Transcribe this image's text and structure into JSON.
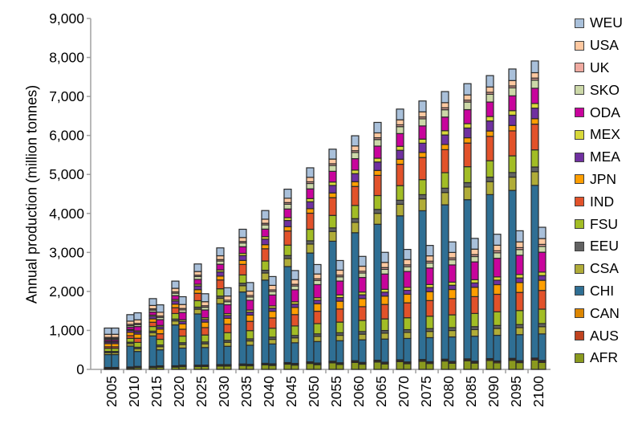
{
  "chart_data": {
    "type": "bar",
    "stacked": true,
    "bars_per_category": 2,
    "title": "",
    "xlabel": "",
    "ylabel": "Annual production (million tonnes)",
    "ylim": [
      0,
      9000
    ],
    "yticks": [
      "0",
      "1,000",
      "2,000",
      "3,000",
      "4,000",
      "5,000",
      "6,000",
      "7,000",
      "8,000",
      "9,000"
    ],
    "ytick_values": [
      0,
      1000,
      2000,
      3000,
      4000,
      5000,
      6000,
      7000,
      8000,
      9000
    ],
    "grid": false,
    "legend_position": "right",
    "categories": [
      "2005",
      "2010",
      "2015",
      "2020",
      "2025",
      "2030",
      "2035",
      "2040",
      "2045",
      "2050",
      "2055",
      "2060",
      "2065",
      "2070",
      "2075",
      "2080",
      "2085",
      "2090",
      "2095",
      "2100"
    ],
    "series": [
      {
        "name": "AFR",
        "color": "#8a9a1e",
        "values_a": [
          20,
          31,
          44,
          59,
          73,
          86,
          101,
          117,
          134,
          152,
          167,
          178,
          189,
          200,
          207,
          215,
          221,
          228,
          233,
          240
        ],
        "values_b": [
          20,
          44,
          57,
          70,
          74,
          84,
          92,
          102,
          111,
          121,
          127,
          134,
          140,
          145,
          151,
          157,
          162,
          169,
          174,
          180
        ]
      },
      {
        "name": "AUS",
        "color": "#c0431f",
        "values_a": [
          15,
          16,
          17,
          18,
          19,
          20,
          21,
          22,
          23,
          24,
          25,
          26,
          27,
          27,
          28,
          28,
          29,
          29,
          30,
          30
        ],
        "values_b": [
          15,
          17,
          18,
          20,
          20,
          21,
          22,
          23,
          24,
          24,
          25,
          26,
          26,
          27,
          27,
          28,
          28,
          29,
          29,
          30
        ]
      },
      {
        "name": "CAN",
        "color": "#dd8600",
        "values_a": [
          15,
          15,
          16,
          16,
          16,
          17,
          17,
          17,
          18,
          18,
          18,
          19,
          19,
          19,
          19,
          19,
          20,
          20,
          20,
          20
        ],
        "values_b": [
          15,
          16,
          16,
          17,
          17,
          17,
          17,
          18,
          18,
          18,
          18,
          19,
          19,
          19,
          19,
          19,
          19,
          20,
          20,
          20
        ]
      },
      {
        "name": "CHI",
        "color": "#2f6f94",
        "values_a": [
          330,
          535,
          781,
          1048,
          1314,
          1560,
          1847,
          2134,
          2462,
          2790,
          3077,
          3282,
          3487,
          3692,
          3815,
          3959,
          4082,
          4205,
          4307,
          4430
        ],
        "values_b": [
          330,
          383,
          411,
          439,
          449,
          470,
          488,
          509,
          530,
          551,
          565,
          579,
          593,
          603,
          617,
          629,
          642,
          656,
          668,
          680
        ]
      },
      {
        "name": "CSA",
        "color": "#b0ac38",
        "values_a": [
          50,
          65,
          83,
          103,
          122,
          140,
          161,
          182,
          206,
          230,
          251,
          266,
          281,
          296,
          305,
          316,
          325,
          334,
          341,
          350
        ],
        "values_b": [
          50,
          70,
          81,
          92,
          96,
          104,
          111,
          119,
          127,
          135,
          140,
          146,
          151,
          155,
          161,
          165,
          170,
          176,
          180,
          185
        ]
      },
      {
        "name": "EEU",
        "color": "#626262",
        "values_a": [
          30,
          35,
          40,
          46,
          52,
          57,
          63,
          70,
          77,
          84,
          90,
          95,
          99,
          104,
          107,
          110,
          112,
          115,
          117,
          120
        ],
        "values_b": [
          30,
          38,
          42,
          46,
          47,
          50,
          53,
          56,
          59,
          62,
          64,
          66,
          68,
          69,
          71,
          73,
          75,
          77,
          78,
          80
        ]
      },
      {
        "name": "FSU",
        "color": "#a2bd25",
        "values_a": [
          80,
          98,
          120,
          143,
          166,
          188,
          213,
          238,
          267,
          296,
          321,
          339,
          357,
          375,
          386,
          399,
          409,
          420,
          429,
          440
        ],
        "values_b": [
          80,
          124,
          147,
          170,
          179,
          196,
          211,
          228,
          245,
          263,
          274,
          286,
          298,
          306,
          318,
          328,
          338,
          350,
          360,
          370
        ]
      },
      {
        "name": "IND",
        "color": "#e2522a",
        "values_a": [
          40,
          71,
          108,
          149,
          189,
          226,
          269,
          313,
          362,
          412,
          455,
          486,
          517,
          548,
          567,
          589,
          607,
          626,
          641,
          660
        ],
        "values_b": [
          40,
          106,
          141,
          176,
          190,
          216,
          238,
          264,
          291,
          317,
          335,
          352,
          370,
          383,
          401,
          416,
          432,
          449,
          465,
          480
        ]
      },
      {
        "name": "JPN",
        "color": "#ff9e00",
        "values_a": [
          80,
          83,
          87,
          91,
          94,
          98,
          102,
          106,
          111,
          116,
          120,
          123,
          126,
          129,
          131,
          133,
          135,
          137,
          138,
          140
        ],
        "values_b": [
          80,
          107,
          121,
          136,
          141,
          152,
          161,
          172,
          183,
          193,
          201,
          208,
          215,
          220,
          228,
          234,
          240,
          247,
          254,
          260
        ]
      },
      {
        "name": "MEA",
        "color": "#7030a0",
        "values_a": [
          40,
          52,
          65,
          80,
          95,
          109,
          125,
          141,
          160,
          178,
          194,
          206,
          217,
          229,
          236,
          244,
          250,
          257,
          263,
          270
        ],
        "values_b": [
          40,
          52,
          58,
          65,
          67,
          72,
          76,
          81,
          86,
          90,
          94,
          97,
          100,
          102,
          106,
          108,
          111,
          114,
          117,
          120
        ]
      },
      {
        "name": "MEX",
        "color": "#d8d83a",
        "values_a": [
          20,
          25,
          31,
          38,
          44,
          50,
          57,
          64,
          72,
          80,
          87,
          92,
          97,
          102,
          105,
          109,
          112,
          115,
          117,
          120
        ],
        "values_b": [
          20,
          31,
          36,
          42,
          44,
          48,
          52,
          56,
          60,
          64,
          67,
          70,
          73,
          75,
          77,
          80,
          82,
          85,
          88,
          90
        ]
      },
      {
        "name": "ODA",
        "color": "#c8049c",
        "values_a": [
          40,
          58,
          79,
          101,
          124,
          145,
          170,
          194,
          222,
          250,
          275,
          292,
          310,
          327,
          338,
          350,
          360,
          371,
          380,
          390
        ],
        "values_b": [
          40,
          111,
          148,
          186,
          200,
          228,
          252,
          280,
          308,
          336,
          355,
          374,
          393,
          407,
          425,
          442,
          458,
          477,
          494,
          510
        ]
      },
      {
        "name": "SKO",
        "color": "#ccd8a8",
        "values_a": [
          30,
          39,
          50,
          62,
          73,
          84,
          97,
          109,
          124,
          138,
          151,
          160,
          169,
          178,
          183,
          189,
          195,
          200,
          205,
          210
        ],
        "values_b": [
          30,
          48,
          58,
          67,
          71,
          78,
          84,
          91,
          98,
          106,
          110,
          115,
          120,
          124,
          128,
          133,
          137,
          142,
          146,
          150
        ]
      },
      {
        "name": "UK",
        "color": "#f0aaa0",
        "values_a": [
          30,
          31,
          32,
          34,
          35,
          36,
          37,
          39,
          40,
          42,
          43,
          44,
          45,
          46,
          47,
          48,
          48,
          49,
          49,
          50
        ],
        "values_b": [
          30,
          33,
          35,
          36,
          37,
          38,
          39,
          40,
          41,
          43,
          43,
          44,
          45,
          46,
          46,
          47,
          48,
          49,
          49,
          50
        ]
      },
      {
        "name": "USA",
        "color": "#ffc8a0",
        "values_a": [
          80,
          83,
          87,
          91,
          94,
          98,
          102,
          106,
          111,
          116,
          120,
          123,
          126,
          129,
          131,
          133,
          135,
          137,
          138,
          140
        ],
        "values_b": [
          80,
          91,
          96,
          102,
          104,
          108,
          112,
          116,
          120,
          124,
          127,
          130,
          133,
          135,
          137,
          140,
          142,
          145,
          148,
          150
        ]
      },
      {
        "name": "WEU",
        "color": "#a9c0da",
        "values_a": [
          160,
          167,
          175,
          185,
          194,
          202,
          212,
          222,
          233,
          244,
          254,
          261,
          268,
          275,
          279,
          284,
          288,
          292,
          296,
          300
        ],
        "values_b": [
          160,
          180,
          190,
          200,
          204,
          212,
          219,
          226,
          234,
          242,
          247,
          252,
          258,
          261,
          267,
          271,
          276,
          281,
          285,
          290
        ]
      }
    ]
  }
}
